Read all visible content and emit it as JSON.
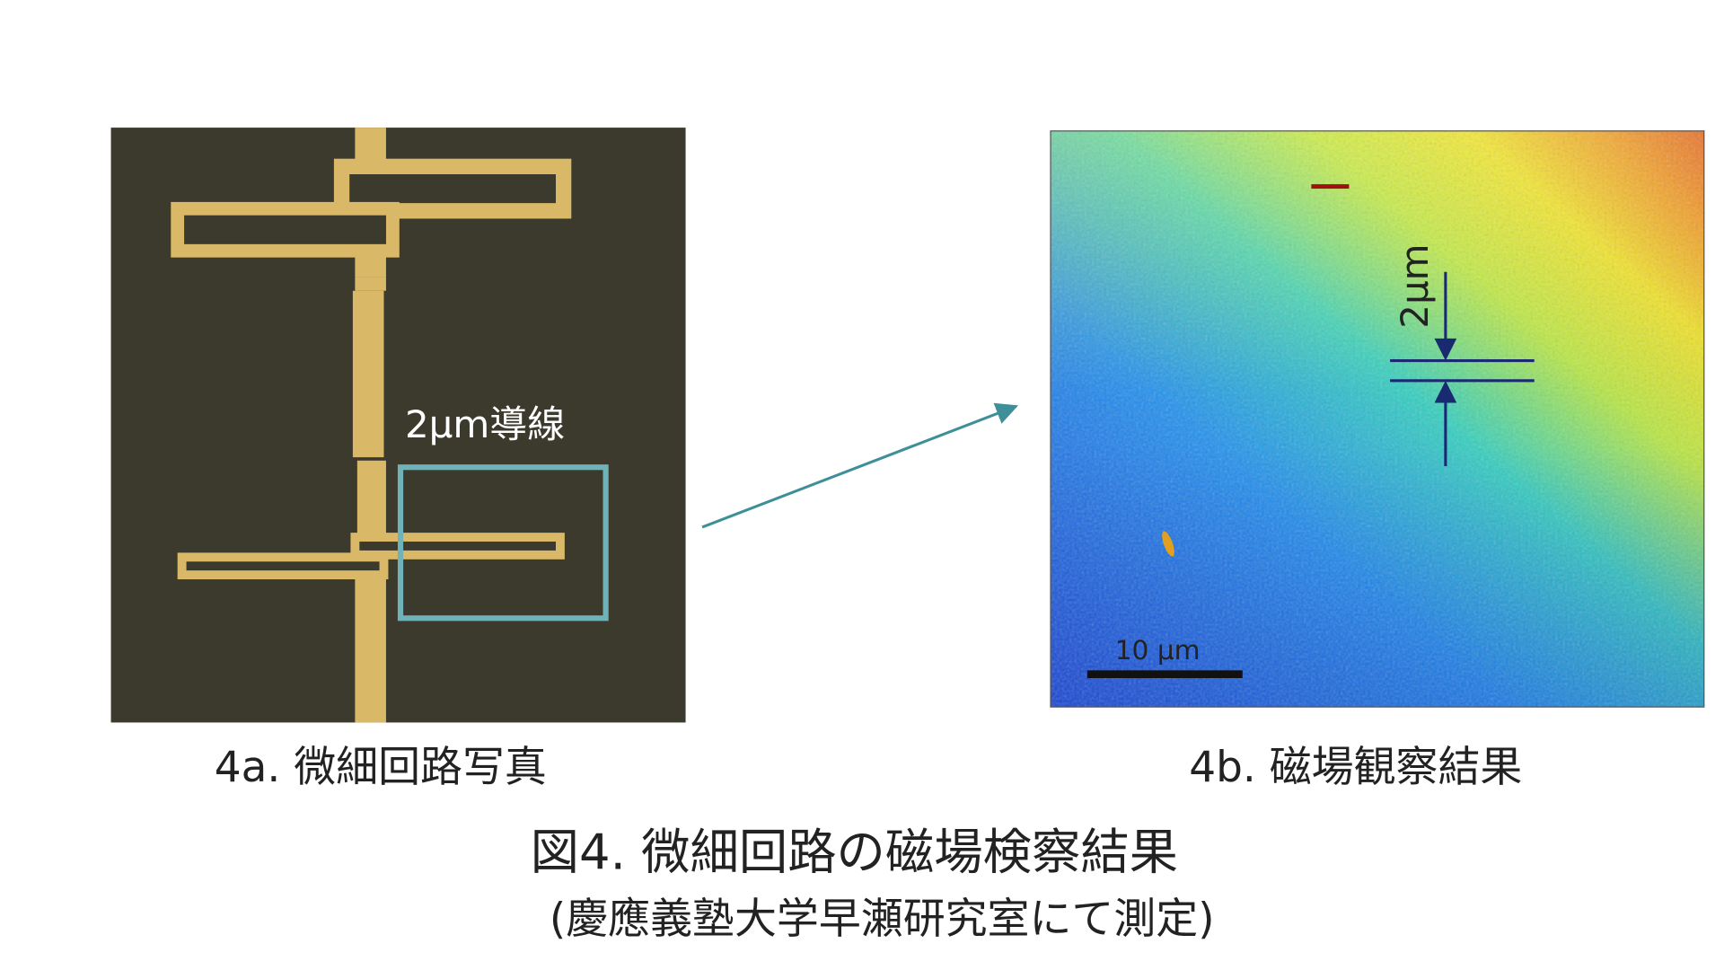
{
  "figure_a": {
    "annotation": "2μm導線",
    "caption": "4a. 微細回路写真"
  },
  "figure_b": {
    "width_label": "2μm",
    "scale_bar_label": "10 μm",
    "caption": "4b. 磁場観察結果"
  },
  "figure": {
    "title": "図4. 微細回路の磁場検察結果",
    "subtitle": "(慶應義塾大学早瀬研究室にて測定)"
  }
}
